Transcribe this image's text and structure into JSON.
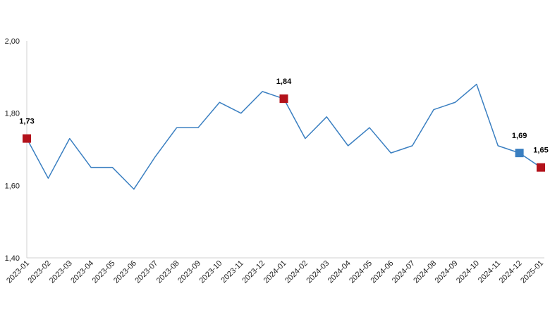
{
  "chart_data": {
    "type": "line",
    "title": "",
    "xlabel": "",
    "ylabel": "",
    "ylim": [
      1.4,
      2.0
    ],
    "yticks": [
      "1,40",
      "1,60",
      "1,80",
      "2,00"
    ],
    "ytick_values": [
      1.4,
      1.6,
      1.8,
      2.0
    ],
    "grid": false,
    "legend": "none",
    "line_color": "#3a7fc1",
    "categories": [
      "2023-01",
      "2023-02",
      "2023-03",
      "2023-04",
      "2023-05",
      "2023-06",
      "2023-07",
      "2023-08",
      "2023-09",
      "2023-10",
      "2023-11",
      "2023-12",
      "2024-01",
      "2024-02",
      "2024-03",
      "2024-04",
      "2024-05",
      "2024-06",
      "2024-07",
      "2024-08",
      "2024-09",
      "2024-10",
      "2024-11",
      "2024-12",
      "2025-01"
    ],
    "series": [
      {
        "values": [
          1.73,
          1.62,
          1.73,
          1.65,
          1.65,
          1.59,
          1.68,
          1.76,
          1.76,
          1.83,
          1.8,
          1.86,
          1.84,
          1.73,
          1.79,
          1.71,
          1.76,
          1.69,
          1.71,
          1.81,
          1.83,
          1.88,
          1.71,
          1.69,
          1.65
        ]
      }
    ],
    "highlighted_points": [
      {
        "category": "2023-01",
        "value": 1.73,
        "label": "1,73",
        "color": "#b3121b"
      },
      {
        "category": "2024-01",
        "value": 1.84,
        "label": "1,84",
        "color": "#b3121b"
      },
      {
        "category": "2024-12",
        "value": 1.69,
        "label": "1,69",
        "color": "#3a7fc1"
      },
      {
        "category": "2025-01",
        "value": 1.65,
        "label": "1,65",
        "color": "#b3121b"
      }
    ]
  }
}
